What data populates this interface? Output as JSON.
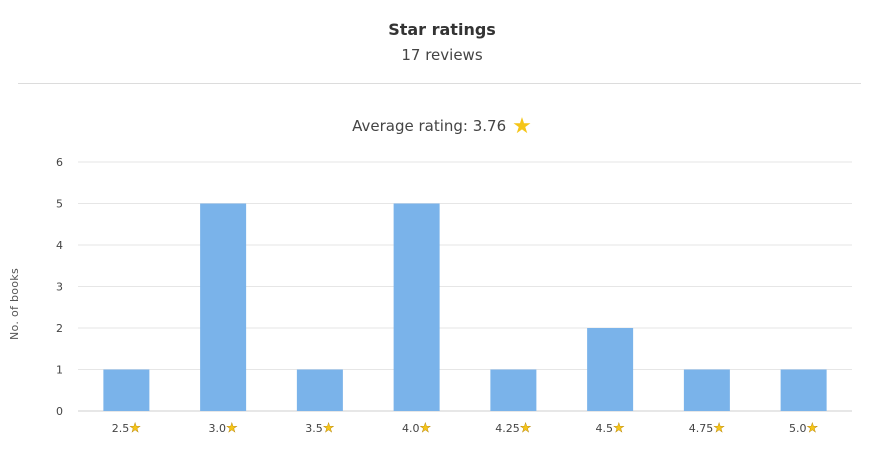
{
  "header": {
    "title": "Star ratings",
    "subtitle": "17 reviews"
  },
  "summary": {
    "average_label": "Average rating: 3.76",
    "star_icon": "star-icon"
  },
  "colors": {
    "bar": "#7ab3ea",
    "grid": "#e6e6e6",
    "star": "#f5c518"
  },
  "chart_data": {
    "type": "bar",
    "categories": [
      "2.5",
      "3.0",
      "3.5",
      "4.0",
      "4.25",
      "4.5",
      "4.75",
      "5.0"
    ],
    "values": [
      1,
      5,
      1,
      5,
      1,
      2,
      1,
      1
    ],
    "ylabel": "No. of books",
    "xlabel": "",
    "ylim": [
      0,
      6
    ],
    "yticks": [
      0,
      1,
      2,
      3,
      4,
      5,
      6
    ],
    "grid": true,
    "legend": "none"
  }
}
